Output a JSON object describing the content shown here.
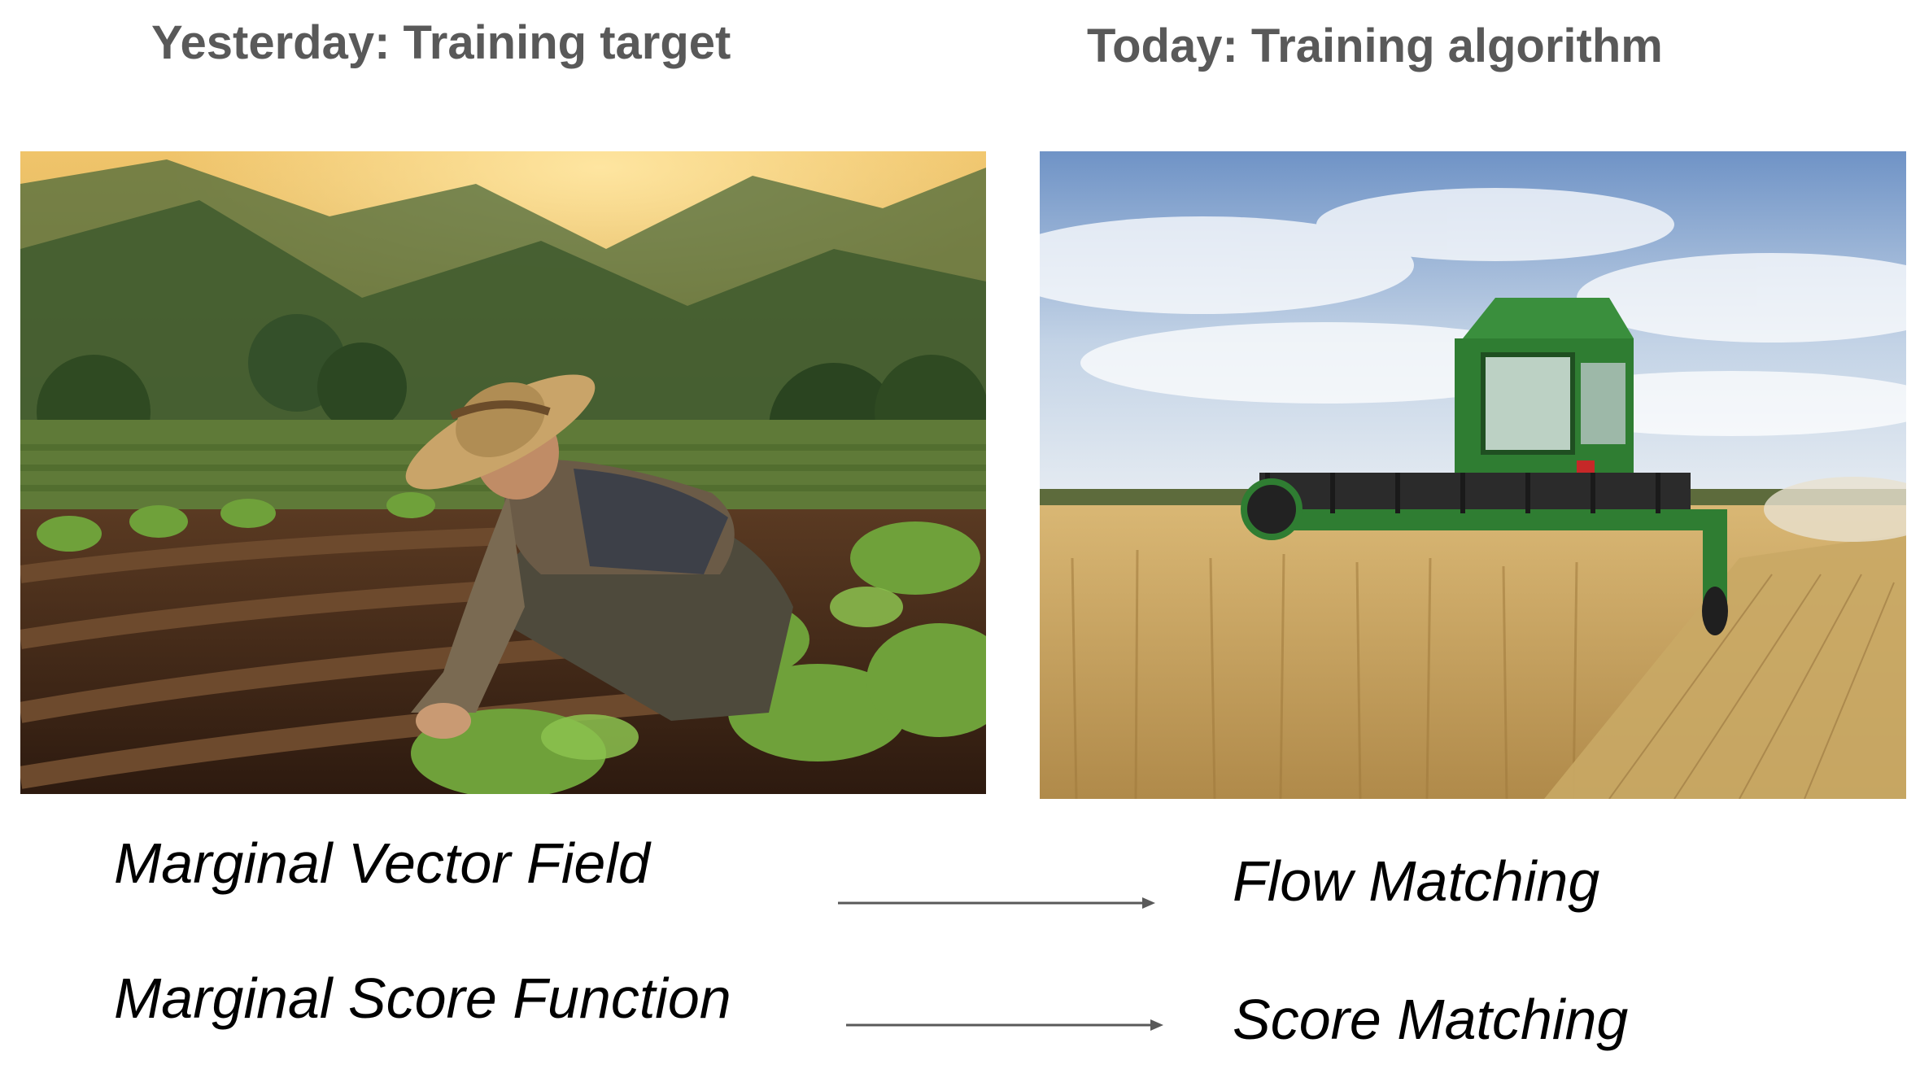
{
  "headings": {
    "left": "Yesterday: Training target",
    "right": "Today: Training algorithm"
  },
  "images": {
    "left": "farmer-planting-seedlings-photo",
    "right": "combine-harvester-wheat-field-photo"
  },
  "rows": [
    {
      "source": "Marginal Vector Field",
      "target": "Flow Matching"
    },
    {
      "source": "Marginal Score Function",
      "target": "Score Matching"
    }
  ],
  "colors": {
    "heading": "#595959",
    "term": "#000000",
    "arrow": "#595959",
    "harvester_green": "#2f7d32",
    "wheat": "#d9b774"
  }
}
